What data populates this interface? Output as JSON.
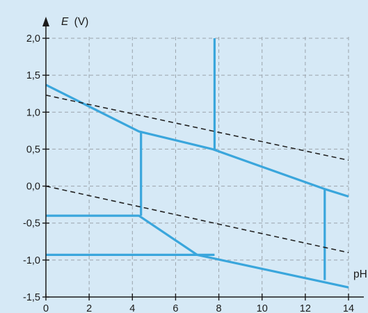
{
  "chart_data": {
    "type": "line",
    "title": "",
    "xlabel": "pH",
    "ylabel_symbol": "E",
    "ylabel_unit": "(V)",
    "xlim": [
      0,
      14
    ],
    "ylim": [
      -1.5,
      2.0
    ],
    "x_ticks": [
      0,
      2,
      4,
      6,
      8,
      10,
      12,
      14
    ],
    "x_tick_labels": [
      "0",
      "2",
      "4",
      "6",
      "8",
      "10",
      "12",
      "14"
    ],
    "y_ticks": [
      -1.5,
      -1.0,
      -0.5,
      0.0,
      0.5,
      1.0,
      1.5,
      2.0
    ],
    "y_tick_labels": [
      "-1,5",
      "-1,0",
      "-0,5",
      "0,0",
      "0,5",
      "1,0",
      "1,5",
      "2,0"
    ],
    "grid": true,
    "colors": {
      "solid": "#3aa6dc",
      "dashed": "#222222",
      "background": "#d6e9f6"
    },
    "series": [
      {
        "style": "solid",
        "points": [
          [
            0,
            1.37
          ],
          [
            4.3,
            0.74
          ],
          [
            7.7,
            0.5
          ],
          [
            12.9,
            -0.04
          ],
          [
            14,
            -0.14
          ]
        ]
      },
      {
        "style": "solid",
        "points": [
          [
            4.4,
            0.74
          ],
          [
            4.4,
            -0.4
          ]
        ]
      },
      {
        "style": "solid",
        "points": [
          [
            0,
            -0.4
          ],
          [
            4.3,
            -0.4
          ],
          [
            7,
            -0.93
          ],
          [
            14,
            -1.37
          ]
        ]
      },
      {
        "style": "solid",
        "points": [
          [
            0,
            -0.93
          ],
          [
            7.8,
            -0.93
          ]
        ]
      },
      {
        "style": "solid",
        "points": [
          [
            7.8,
            2.0
          ],
          [
            7.8,
            0.5
          ]
        ]
      },
      {
        "style": "solid",
        "points": [
          [
            12.9,
            -0.04
          ],
          [
            12.9,
            -1.27
          ]
        ]
      },
      {
        "style": "dashed",
        "points": [
          [
            0,
            1.23
          ],
          [
            14,
            0.35
          ]
        ]
      },
      {
        "style": "dashed",
        "points": [
          [
            0,
            0.0
          ],
          [
            14,
            -0.9
          ]
        ]
      }
    ]
  }
}
